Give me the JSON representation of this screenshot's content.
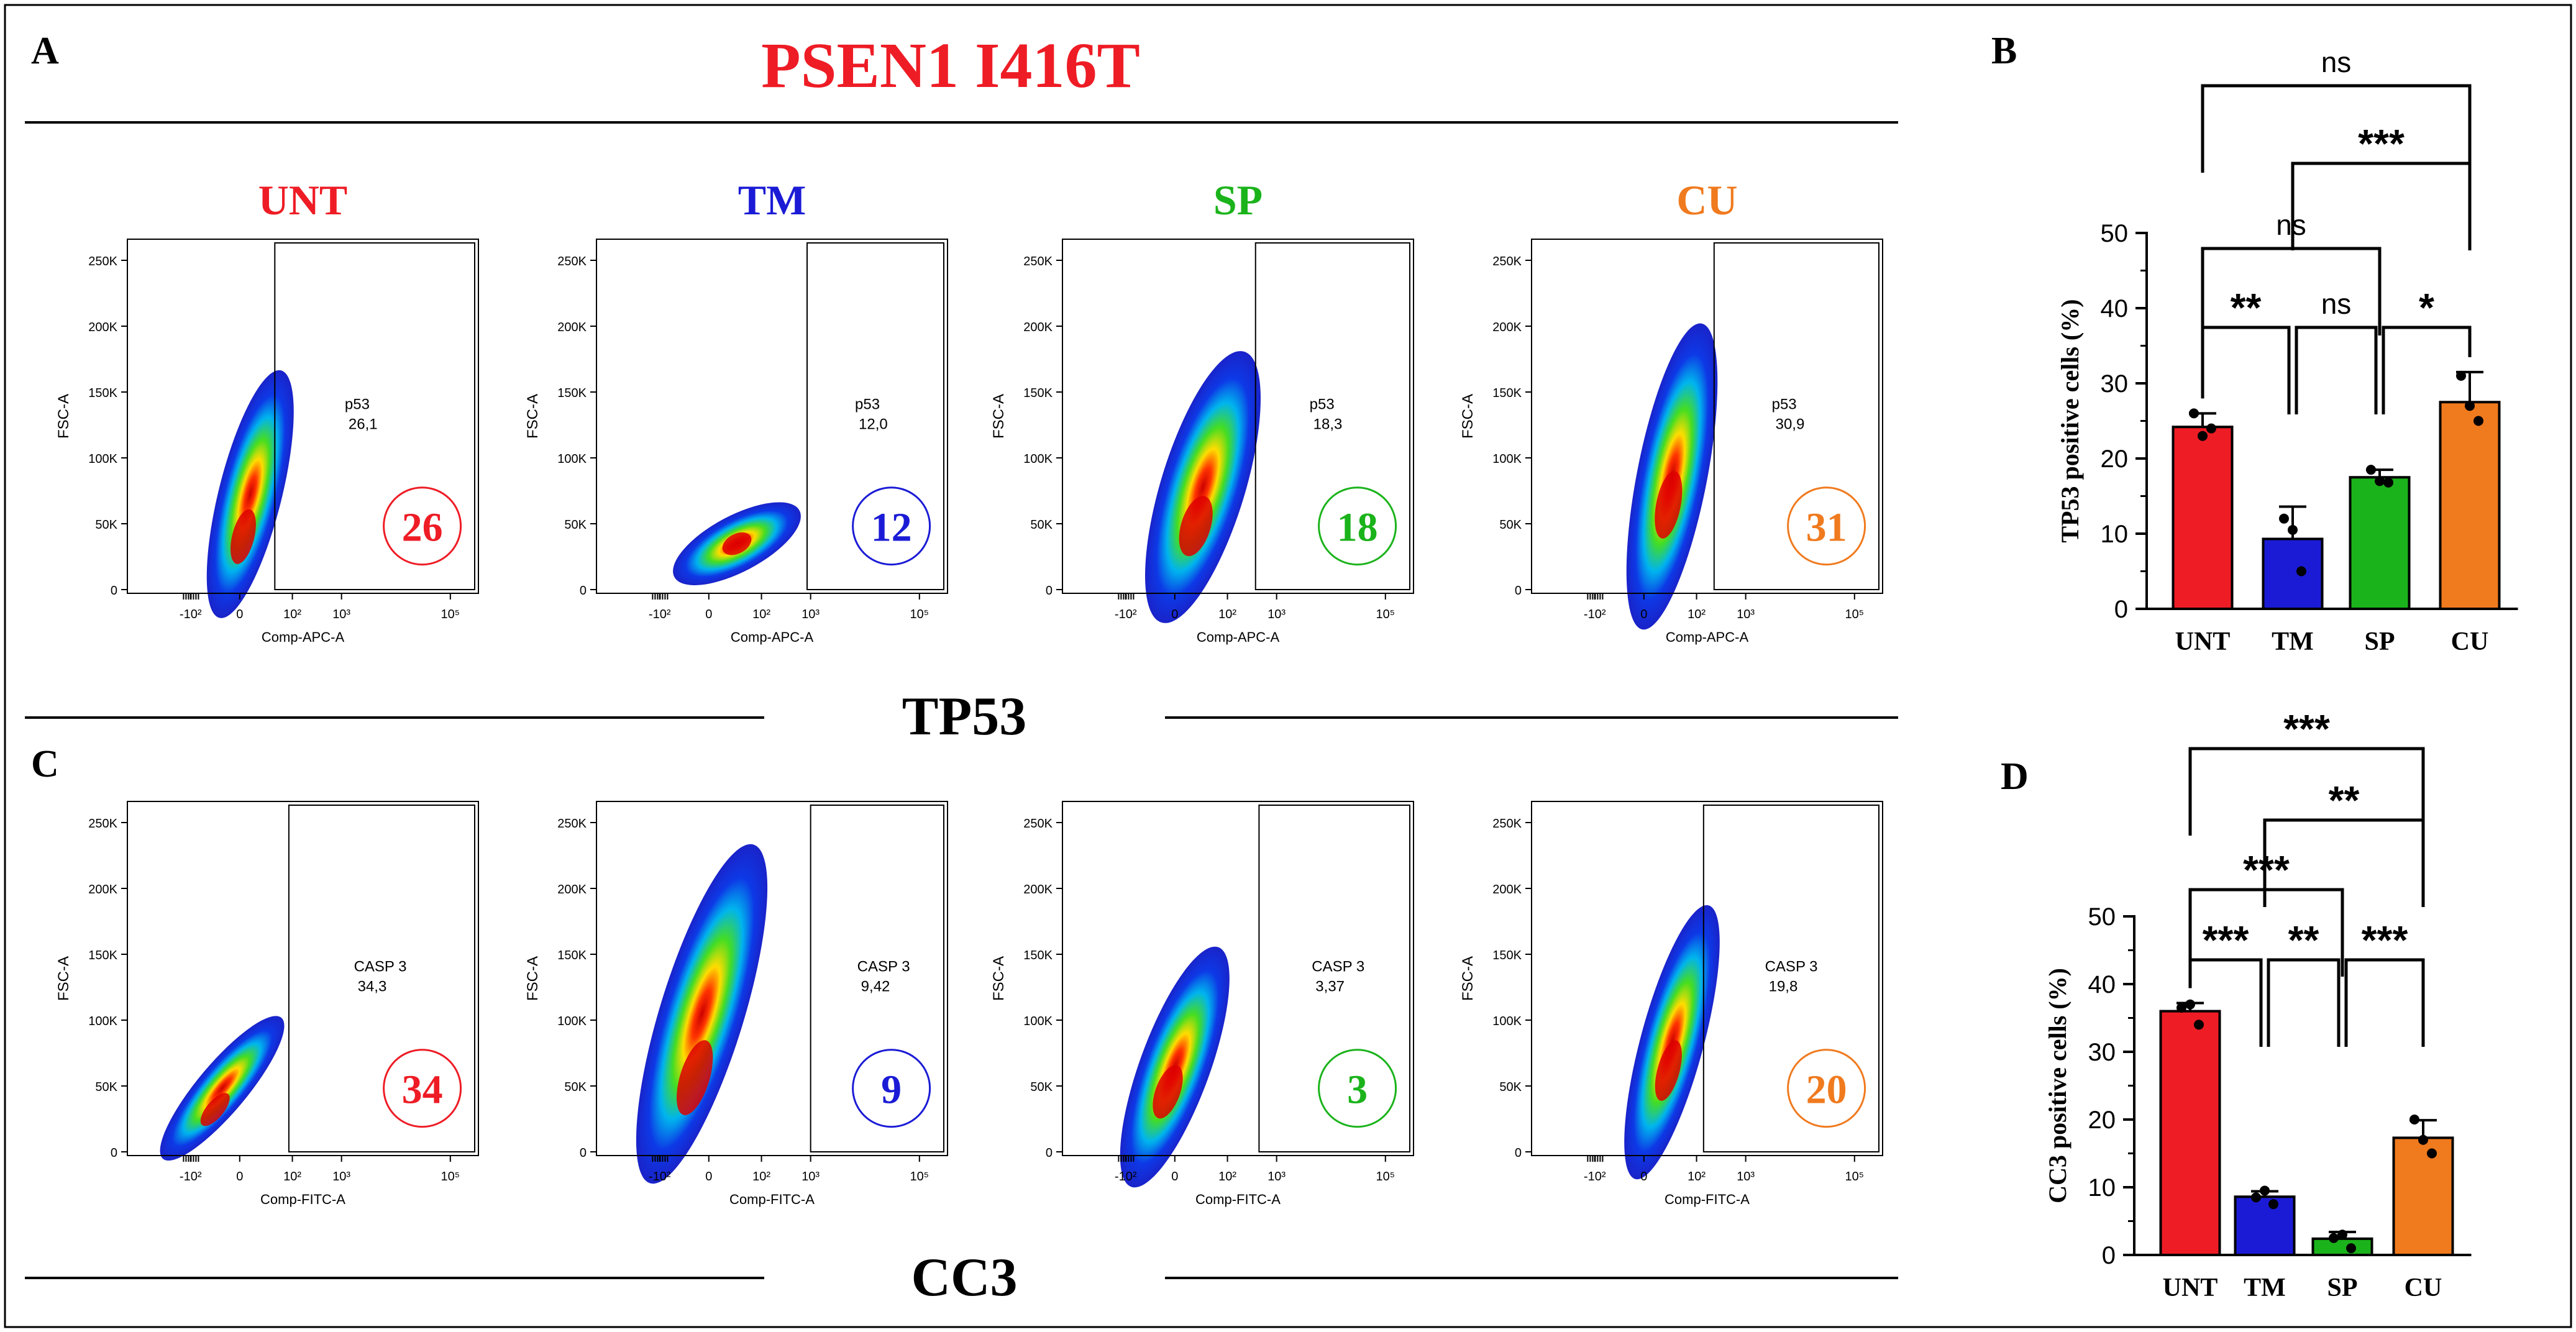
{
  "figure": {
    "title": "PSEN1 I416T",
    "title_color": "#ee1c25",
    "panel_letters": [
      "A",
      "B",
      "C",
      "D"
    ],
    "section_labels": [
      "TP53",
      "CC3"
    ]
  },
  "colors": {
    "UNT": "#ee1c25",
    "TM": "#1b1bd6",
    "SP": "#1bb31b",
    "CU": "#f07a1e"
  },
  "flow_common": {
    "y_axis_label": "FSC-A",
    "y_ticks": [
      "0",
      "50K",
      "100K",
      "150K",
      "200K",
      "250K"
    ],
    "x_ticks": [
      "-10²",
      "0",
      "10²",
      "10³",
      "10⁵"
    ]
  },
  "flow_rows": [
    {
      "row_id": "tp53",
      "x_axis_label": "Comp-APC-A",
      "gate_name": "p53",
      "plots": [
        {
          "group": "UNT",
          "gate_value": "26,1",
          "circle_value": "26"
        },
        {
          "group": "TM",
          "gate_value": "12,0",
          "circle_value": "12"
        },
        {
          "group": "SP",
          "gate_value": "18,3",
          "circle_value": "18"
        },
        {
          "group": "CU",
          "gate_value": "30,9",
          "circle_value": "31"
        }
      ]
    },
    {
      "row_id": "cc3",
      "x_axis_label": "Comp-FITC-A",
      "gate_name": "CASP 3",
      "plots": [
        {
          "group": "UNT",
          "gate_value": "34,3",
          "circle_value": "34"
        },
        {
          "group": "TM",
          "gate_value": "9,42",
          "circle_value": "9"
        },
        {
          "group": "SP",
          "gate_value": "3,37",
          "circle_value": "3"
        },
        {
          "group": "CU",
          "gate_value": "19,8",
          "circle_value": "20"
        }
      ]
    }
  ],
  "chart_data": [
    {
      "panel": "B",
      "type": "bar",
      "categories": [
        "UNT",
        "TM",
        "SP",
        "CU"
      ],
      "values": [
        24.2,
        9.3,
        17.5,
        27.5
      ],
      "errors": [
        1.8,
        4.3,
        1.0,
        4.0
      ],
      "points": [
        [
          26.0,
          24.0,
          23.0
        ],
        [
          12.0,
          5.0,
          10.5
        ],
        [
          18.5,
          16.8,
          17.0
        ],
        [
          31.0,
          25.0,
          27.0
        ]
      ],
      "ylabel": "TP53 positive cells (%)",
      "ylim": [
        0,
        50
      ],
      "yticks": [
        0,
        10,
        20,
        30,
        40,
        50
      ],
      "comparisons": [
        {
          "from": 0,
          "to": 3,
          "label": "ns",
          "level": 5
        },
        {
          "from": 1,
          "to": 3,
          "label": "***",
          "level": 4
        },
        {
          "from": 0,
          "to": 2,
          "label": "ns",
          "level": 3
        },
        {
          "from": 0,
          "to": 1,
          "label": "**",
          "level": 2
        },
        {
          "from": 1,
          "to": 2,
          "label": "ns",
          "level": 2
        },
        {
          "from": 2,
          "to": 3,
          "label": "*",
          "level": 2
        }
      ]
    },
    {
      "panel": "D",
      "type": "bar",
      "categories": [
        "UNT",
        "TM",
        "SP",
        "CU"
      ],
      "values": [
        36.0,
        8.6,
        2.4,
        17.3
      ],
      "errors": [
        1.2,
        0.8,
        1.0,
        2.6
      ],
      "points": [
        [
          36.5,
          34.0,
          37.0
        ],
        [
          8.5,
          7.5,
          9.5
        ],
        [
          2.5,
          1.0,
          3.0
        ],
        [
          20.0,
          15.0,
          17.0
        ]
      ],
      "ylabel": "CC3 positive cells (%)",
      "ylim": [
        0,
        50
      ],
      "yticks": [
        0,
        10,
        20,
        30,
        40,
        50
      ],
      "comparisons": [
        {
          "from": 0,
          "to": 3,
          "label": "***",
          "level": 5
        },
        {
          "from": 1,
          "to": 3,
          "label": "**",
          "level": 4
        },
        {
          "from": 0,
          "to": 2,
          "label": "***",
          "level": 3
        },
        {
          "from": 0,
          "to": 1,
          "label": "***",
          "level": 2
        },
        {
          "from": 1,
          "to": 2,
          "label": "**",
          "level": 2
        },
        {
          "from": 2,
          "to": 3,
          "label": "***",
          "level": 2
        }
      ]
    }
  ]
}
